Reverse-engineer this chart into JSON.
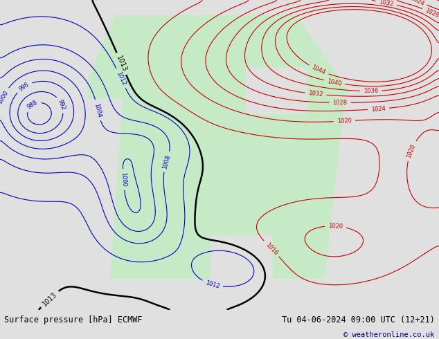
{
  "title_left": "Surface pressure [hPa] ECMWF",
  "title_right": "Tu 04-06-2024 09:00 UTC (12+21)",
  "copyright": "© weatheronline.co.uk",
  "bg_color": "#e0e0e0",
  "land_green": [
    0.78,
    0.92,
    0.78
  ],
  "ocean_gray": [
    0.88,
    0.88,
    0.88
  ],
  "color_blue": "#0000cc",
  "color_red": "#cc0000",
  "color_black": "#000000",
  "color_navy": "#000080",
  "lw_thin": 0.8,
  "lw_bold": 1.8,
  "label_fs": 6,
  "title_fs": 8.5,
  "copy_fs": 7.5,
  "figsize": [
    6.34,
    4.9
  ],
  "dpi": 100,
  "bar_color": "#cccccc"
}
